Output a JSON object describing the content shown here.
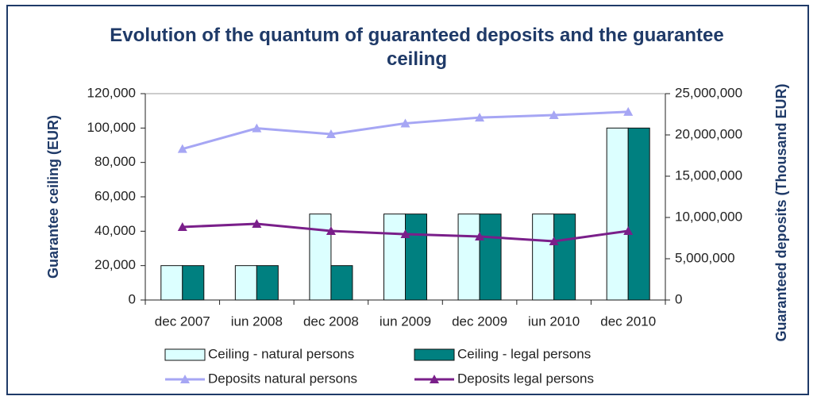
{
  "chart_data": {
    "type": "combo",
    "title": "Evolution of the quantum of guaranteed deposits and the guarantee ceiling",
    "y_label": "Guarantee ceiling (EUR)",
    "y2_label": "Guaranteed deposits (Thousand EUR)",
    "categories": [
      "dec 2007",
      "iun 2008",
      "dec 2008",
      "iun 2009",
      "dec 2009",
      "iun 2010",
      "dec 2010"
    ],
    "ylim": [
      0,
      120000
    ],
    "yticks": [
      0,
      {
        "value": 20000,
        "label": "20,000"
      },
      {
        "value": 40000,
        "label": "40,000"
      },
      {
        "value": 60000,
        "label": "60,000"
      },
      {
        "value": 80000,
        "label": "80,000"
      },
      {
        "value": 100000,
        "label": "100,000"
      },
      {
        "value": 120000,
        "label": "120,000"
      }
    ],
    "y2lim": [
      0,
      25000000
    ],
    "y2ticks": [
      0,
      {
        "value": 5000000,
        "label": "5,000,000"
      },
      {
        "value": 10000000,
        "label": "10,000,000"
      },
      {
        "value": 15000000,
        "label": "15,000,000"
      },
      {
        "value": 20000000,
        "label": "20,000,000"
      },
      {
        "value": 25000000,
        "label": "25,000,000"
      }
    ],
    "series": [
      {
        "name": "Ceiling - natural persons",
        "type": "bar",
        "color": "#dcffff",
        "values": [
          20000,
          20000,
          50000,
          50000,
          50000,
          50000,
          100000
        ]
      },
      {
        "name": "Ceiling - legal persons",
        "type": "bar",
        "color": "#008080",
        "values": [
          20000,
          20000,
          20000,
          50000,
          50000,
          50000,
          100000
        ]
      },
      {
        "name": "Deposits natural persons",
        "type": "line",
        "axis": "y2",
        "color": "#a6a6f4",
        "values": [
          18300000,
          20800000,
          20100000,
          21400000,
          22100000,
          22400000,
          22800000
        ]
      },
      {
        "name": "Deposits legal persons",
        "type": "line",
        "axis": "y2",
        "color": "#7a1f8a",
        "values": [
          8850000,
          9230000,
          8370000,
          7980000,
          7690000,
          7120000,
          8370000
        ]
      }
    ]
  }
}
